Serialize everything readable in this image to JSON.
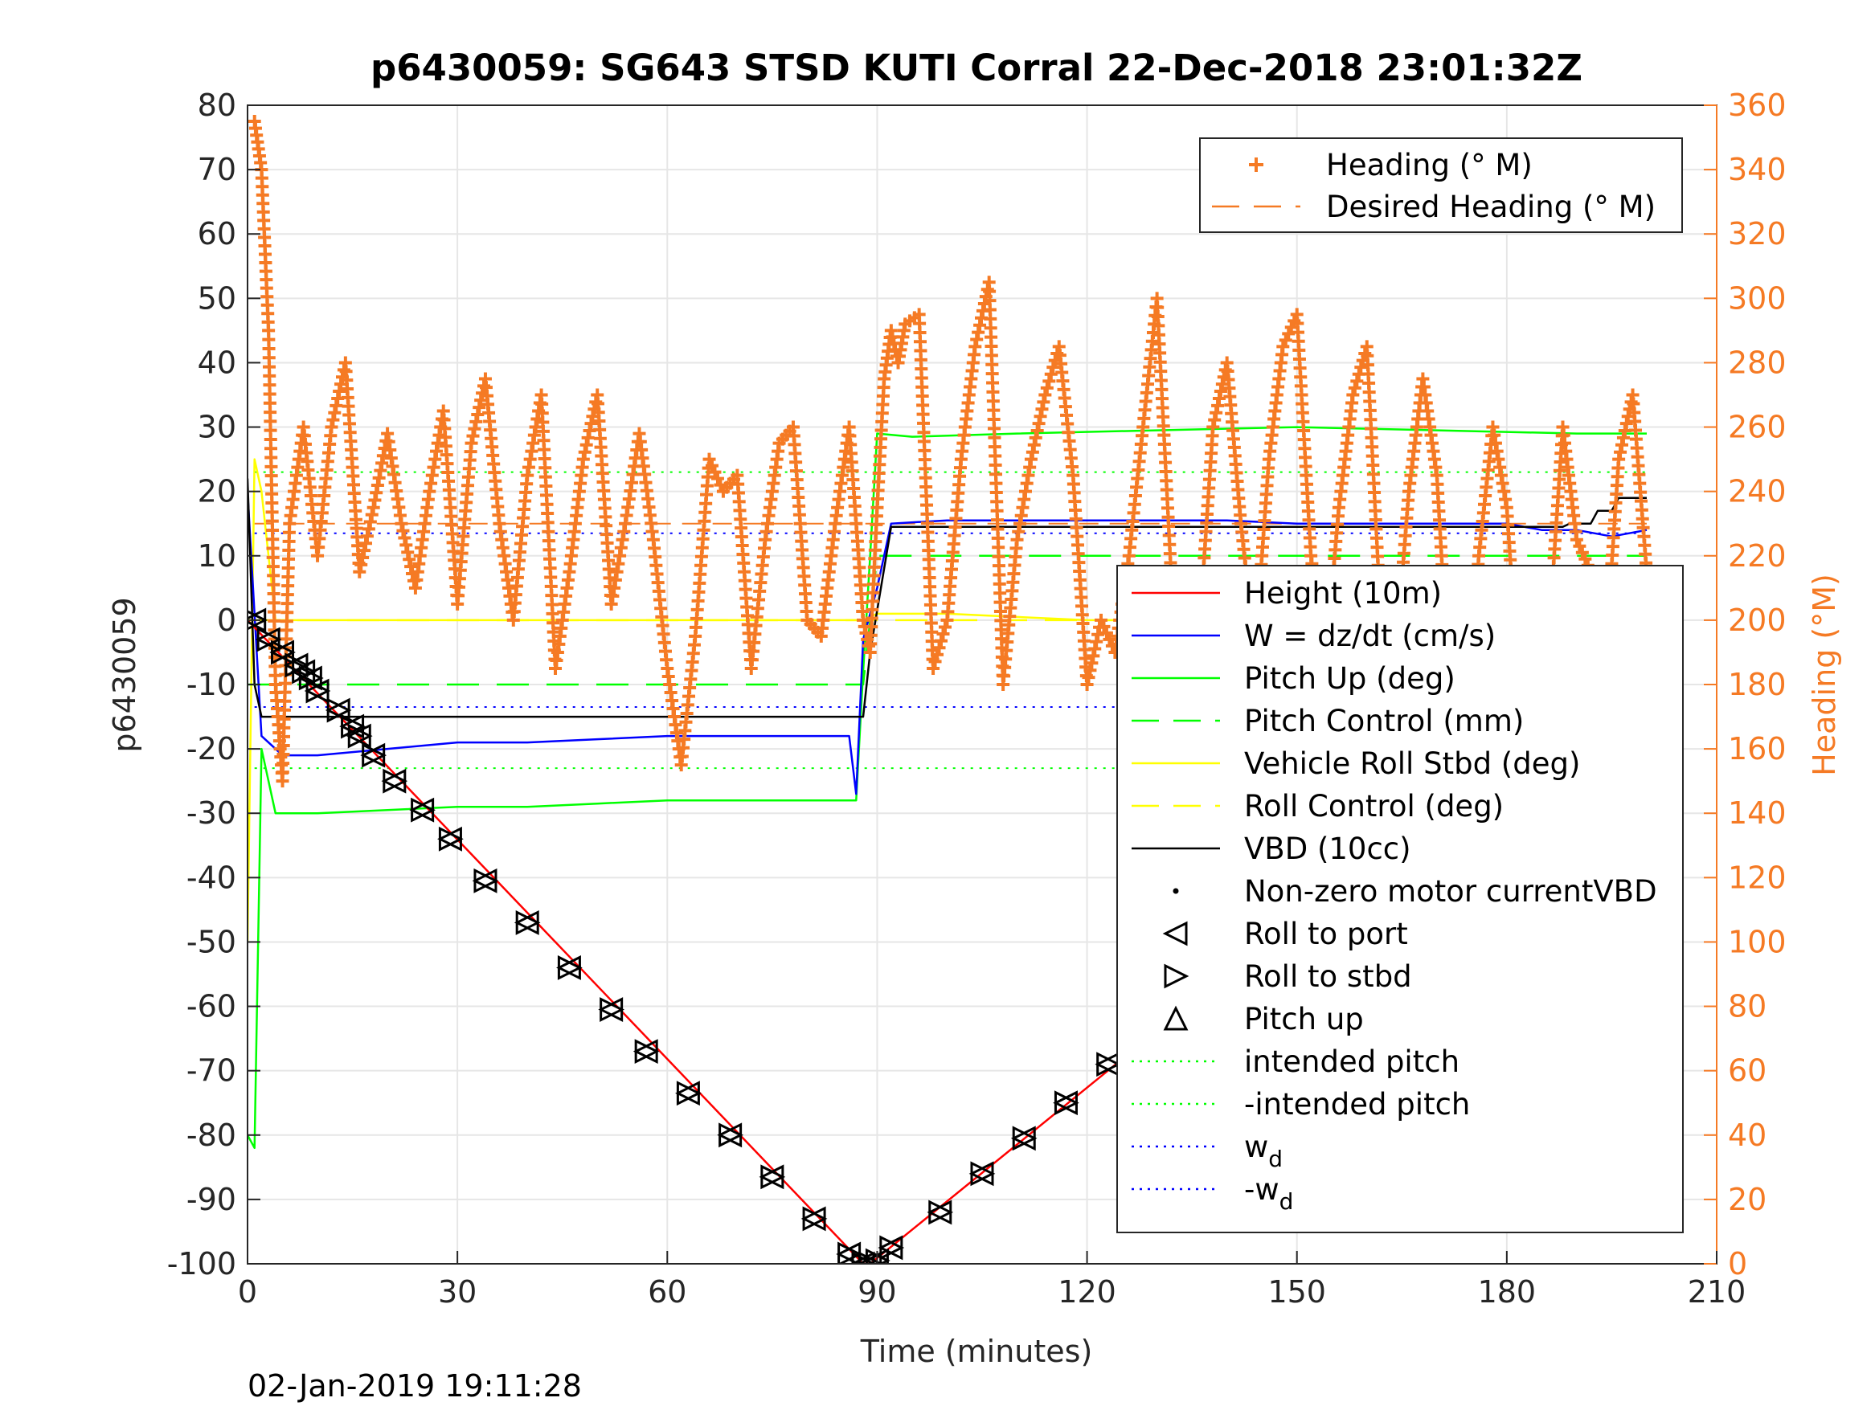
{
  "chart_data": {
    "type": "line",
    "title": "p6430059: SG643 STSD KUTI Corral 22-Dec-2018 23:01:32Z",
    "xlabel": "Time (minutes)",
    "ylabel": "p6430059",
    "ylabel_right": "Heading (°M)",
    "footer": "02-Jan-2019 19:11:28",
    "xlim": [
      0,
      210
    ],
    "ylim": [
      -100,
      80
    ],
    "ylim_right": [
      0,
      360
    ],
    "xticks": [
      "0",
      "30",
      "60",
      "90",
      "120",
      "150",
      "180",
      "210"
    ],
    "yticks": [
      "80",
      "70",
      "60",
      "50",
      "40",
      "30",
      "20",
      "10",
      "0",
      "-10",
      "-20",
      "-30",
      "-40",
      "-50",
      "-60",
      "-70",
      "-80",
      "-90",
      "-100"
    ],
    "yticks_right": [
      "360",
      "340",
      "320",
      "300",
      "280",
      "260",
      "240",
      "220",
      "200",
      "180",
      "160",
      "140",
      "120",
      "100",
      "80",
      "60",
      "40",
      "20",
      "0"
    ],
    "grid": true,
    "legend_top": {
      "position": "top-right",
      "entries": [
        {
          "label": "Heading (° M)",
          "color": "#f57a24",
          "style": "plus"
        },
        {
          "label": "Desired Heading (° M)",
          "color": "#f57a24",
          "style": "dashed"
        }
      ]
    },
    "legend_main": {
      "position": "right",
      "entries": [
        {
          "label": "Height (10m)",
          "color": "#ff0000",
          "style": "solid"
        },
        {
          "label": "W = dz/dt (cm/s)",
          "color": "#0000ff",
          "style": "solid"
        },
        {
          "label": "Pitch Up (deg)",
          "color": "#00ff00",
          "style": "solid"
        },
        {
          "label": "Pitch Control (mm)",
          "color": "#00ff00",
          "style": "dashed"
        },
        {
          "label": "Vehicle Roll Stbd (deg)",
          "color": "#ffff00",
          "style": "solid"
        },
        {
          "label": "Roll Control (deg)",
          "color": "#ffff00",
          "style": "dashed"
        },
        {
          "label": "VBD (10cc)",
          "color": "#000000",
          "style": "solid"
        },
        {
          "label": "Non-zero motor currentVBD",
          "color": "#000000",
          "style": "dot"
        },
        {
          "label": "Roll to port",
          "color": "#000000",
          "style": "tri-left"
        },
        {
          "label": "Roll to stbd",
          "color": "#000000",
          "style": "tri-right"
        },
        {
          "label": "Pitch up",
          "color": "#000000",
          "style": "tri-up"
        },
        {
          "label": "intended pitch",
          "color": "#00ff00",
          "style": "dotted"
        },
        {
          "label": "-intended pitch",
          "color": "#00ff00",
          "style": "dotted"
        },
        {
          "label": "w",
          "sub": "d",
          "color": "#0000ff",
          "style": "dotted"
        },
        {
          "label": "-w",
          "sub": "d",
          "color": "#0000ff",
          "style": "dotted"
        }
      ]
    },
    "reference_lines": {
      "intended_pitch": 23,
      "neg_intended_pitch": -23,
      "w_d": 13.5,
      "neg_w_d": -13.5,
      "desired_heading_deg": 230
    },
    "series": [
      {
        "name": "Height (10m)",
        "x": [
          0,
          88,
          89,
          200
        ],
        "y": [
          0,
          -100,
          -100,
          -2
        ]
      },
      {
        "name": "W = dz/dt (cm/s)",
        "x": [
          0,
          2,
          5,
          10,
          20,
          30,
          40,
          50,
          60,
          70,
          80,
          86,
          87,
          88,
          90,
          92,
          100,
          110,
          120,
          130,
          140,
          150,
          160,
          170,
          180,
          185,
          190,
          195,
          200
        ],
        "y": [
          20,
          -18,
          -21,
          -21,
          -20,
          -19,
          -19,
          -18.5,
          -18,
          -18,
          -18,
          -18,
          -27,
          -3,
          5,
          15,
          15.5,
          15.5,
          15.5,
          15.5,
          15.5,
          15,
          15,
          15,
          15,
          14,
          14,
          13,
          14
        ]
      },
      {
        "name": "Pitch Up (deg)",
        "x": [
          0,
          1,
          2,
          3,
          4,
          6,
          10,
          20,
          30,
          40,
          50,
          60,
          70,
          80,
          87,
          88,
          89,
          90,
          95,
          110,
          130,
          150,
          170,
          190,
          200
        ],
        "y": [
          -80,
          -82,
          -20,
          -25,
          -30,
          -30,
          -30,
          -29.5,
          -29,
          -29,
          -28.5,
          -28,
          -28,
          -28,
          -28,
          -8,
          10,
          29,
          28.5,
          29,
          29.5,
          30,
          29.5,
          29,
          29
        ]
      },
      {
        "name": "Pitch Control (mm)",
        "x": [
          0,
          88,
          89,
          90,
          200
        ],
        "y": [
          -10,
          -10,
          0,
          10,
          10
        ]
      },
      {
        "name": "Vehicle Roll Stbd (deg)",
        "x": [
          0,
          1,
          2,
          4,
          8,
          20,
          40,
          60,
          80,
          88,
          90,
          100,
          120,
          140,
          160,
          180,
          200
        ],
        "y": [
          -50,
          25,
          20,
          0,
          0,
          0,
          0,
          0,
          0,
          0,
          1,
          1,
          0,
          0,
          0,
          0,
          0
        ]
      },
      {
        "name": "Roll Control (deg)",
        "x": [
          0,
          200
        ],
        "y": [
          0,
          0
        ]
      },
      {
        "name": "VBD (10cc)",
        "x": [
          0,
          1,
          2,
          88,
          89,
          92,
          188,
          189,
          192,
          193,
          195,
          196,
          200
        ],
        "y": [
          22,
          -10,
          -15,
          -15,
          -5,
          14.5,
          14.5,
          15,
          15,
          17,
          17,
          19,
          19
        ]
      },
      {
        "name": "Heading (° M)",
        "axis": "right",
        "x": [
          1,
          2,
          3,
          4,
          5,
          6,
          8,
          10,
          12,
          14,
          16,
          18,
          20,
          22,
          24,
          26,
          28,
          30,
          32,
          34,
          36,
          38,
          40,
          42,
          44,
          46,
          48,
          50,
          52,
          54,
          56,
          58,
          60,
          62,
          64,
          66,
          68,
          70,
          72,
          74,
          76,
          78,
          80,
          82,
          84,
          86,
          88,
          89,
          90,
          91,
          92,
          93,
          94,
          96,
          98,
          100,
          102,
          104,
          106,
          108,
          110,
          112,
          114,
          116,
          118,
          120,
          122,
          124,
          126,
          128,
          130,
          132,
          134,
          136,
          138,
          140,
          142,
          144,
          146,
          148,
          150,
          152,
          154,
          156,
          158,
          160,
          162,
          164,
          166,
          168,
          170,
          172,
          174,
          176,
          178,
          180,
          182,
          184,
          186,
          188,
          190,
          192,
          194,
          196,
          198,
          200
        ],
        "y": [
          355,
          340,
          290,
          180,
          150,
          230,
          260,
          220,
          260,
          280,
          215,
          235,
          258,
          230,
          210,
          240,
          265,
          205,
          255,
          275,
          230,
          200,
          245,
          270,
          185,
          215,
          250,
          270,
          205,
          230,
          258,
          225,
          185,
          155,
          195,
          250,
          240,
          245,
          185,
          225,
          255,
          260,
          200,
          195,
          230,
          260,
          200,
          190,
          235,
          275,
          290,
          280,
          292,
          295,
          185,
          200,
          250,
          285,
          305,
          180,
          225,
          250,
          270,
          285,
          245,
          180,
          200,
          190,
          220,
          260,
          300,
          215,
          200,
          195,
          260,
          280,
          230,
          190,
          250,
          285,
          295,
          220,
          185,
          235,
          270,
          285,
          200,
          185,
          240,
          275,
          245,
          170,
          155,
          220,
          260,
          235,
          170,
          150,
          195,
          260,
          225,
          215,
          185,
          250,
          270,
          215
        ]
      }
    ],
    "profile_markers": {
      "x": [
        1,
        3,
        5,
        7,
        8,
        9,
        10,
        13,
        15,
        16,
        18,
        21,
        25,
        29,
        34,
        40,
        46,
        52,
        57,
        63,
        69,
        75,
        81,
        86,
        88,
        89,
        90,
        92,
        99,
        105,
        111,
        117,
        123,
        129,
        135,
        141,
        147,
        153,
        159,
        165,
        170,
        174,
        178,
        182,
        186,
        189,
        192,
        195,
        197,
        199
      ],
      "y": [
        0,
        -3,
        -5,
        -7,
        -8,
        -9,
        -11,
        -14,
        -16.5,
        -18,
        -21,
        -25,
        -29.5,
        -34,
        -40.5,
        -47,
        -54,
        -60.5,
        -67,
        -73.5,
        -80,
        -86.5,
        -93,
        -98.5,
        -100,
        -100,
        -99.5,
        -97.5,
        -92,
        -86,
        -80.5,
        -75,
        -69,
        -63,
        -57.5,
        -52,
        -46.5,
        -41,
        -35,
        -29.5,
        -25,
        -21.5,
        -18,
        -15,
        -12,
        -9,
        -7,
        -4.5,
        -3,
        -1.5
      ]
    }
  }
}
